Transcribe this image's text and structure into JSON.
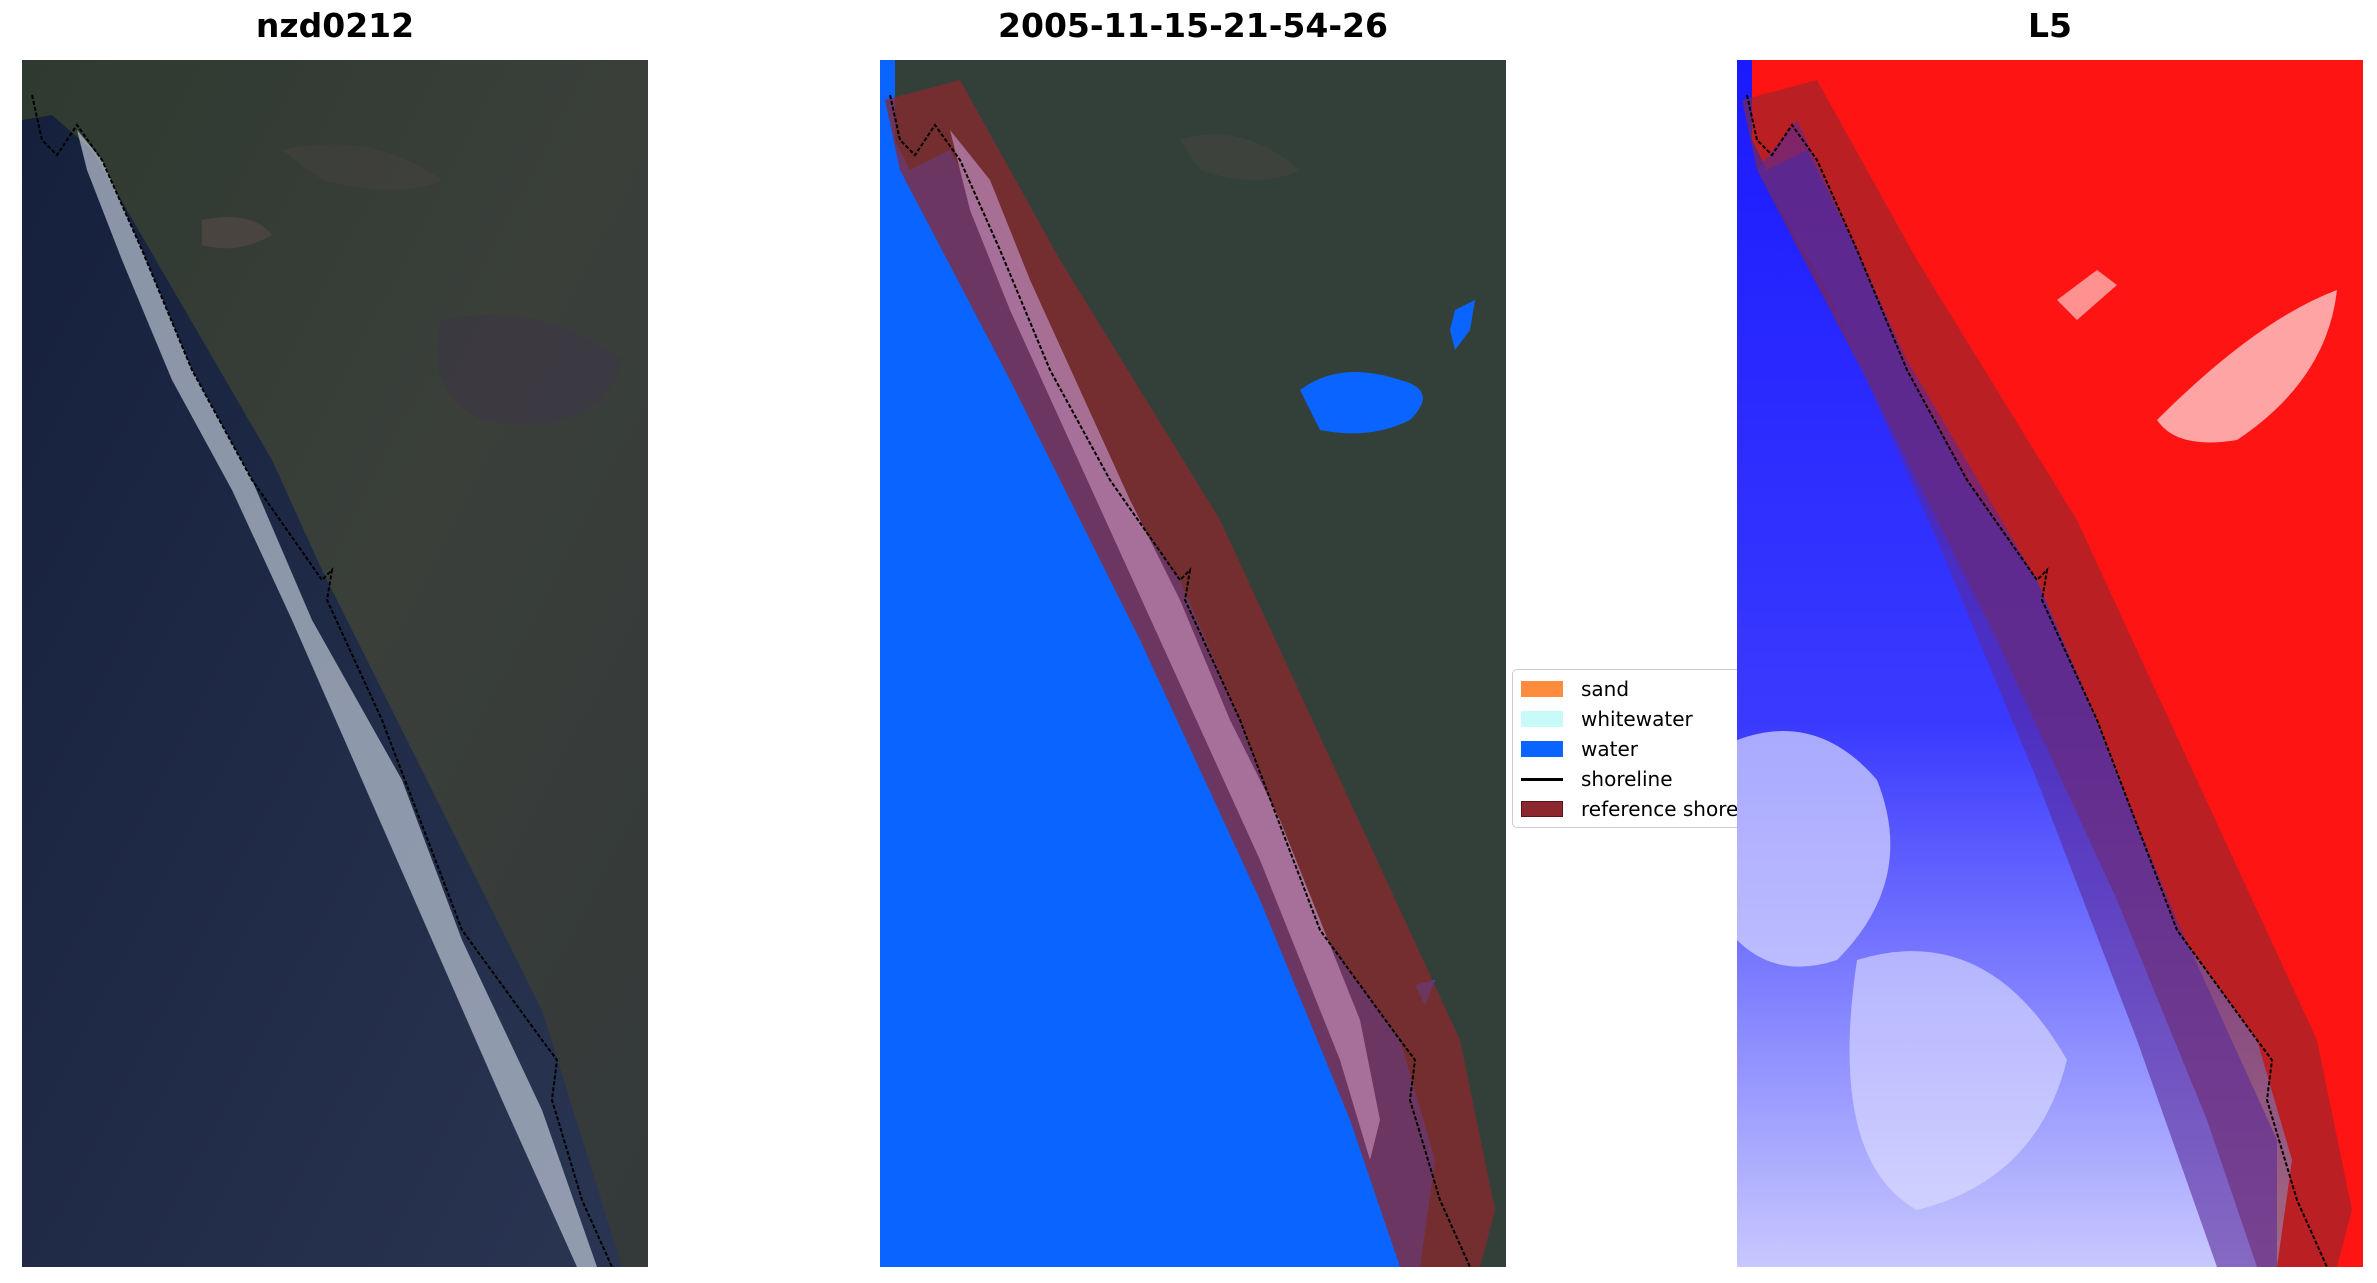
{
  "panels": [
    {
      "title": "nzd0212"
    },
    {
      "title": "2005-11-15-21-54-26"
    },
    {
      "title": "L5"
    }
  ],
  "legend": {
    "items": [
      {
        "label": "sand",
        "color": "#ff8c3c"
      },
      {
        "label": "whitewater",
        "color": "#c8fafa"
      },
      {
        "label": "water",
        "color": "#0a64ff"
      },
      {
        "label": "shoreline",
        "color": "#000000"
      },
      {
        "label": "reference shoreline buffer",
        "color": "#8c282d"
      }
    ]
  },
  "colors": {
    "ocean": "#1c2a4a",
    "land": "#2f3a31",
    "water_class": "#0a64ff",
    "buffer": "#8c282d",
    "index_water": "#2020ff",
    "index_land": "#ff1010"
  }
}
